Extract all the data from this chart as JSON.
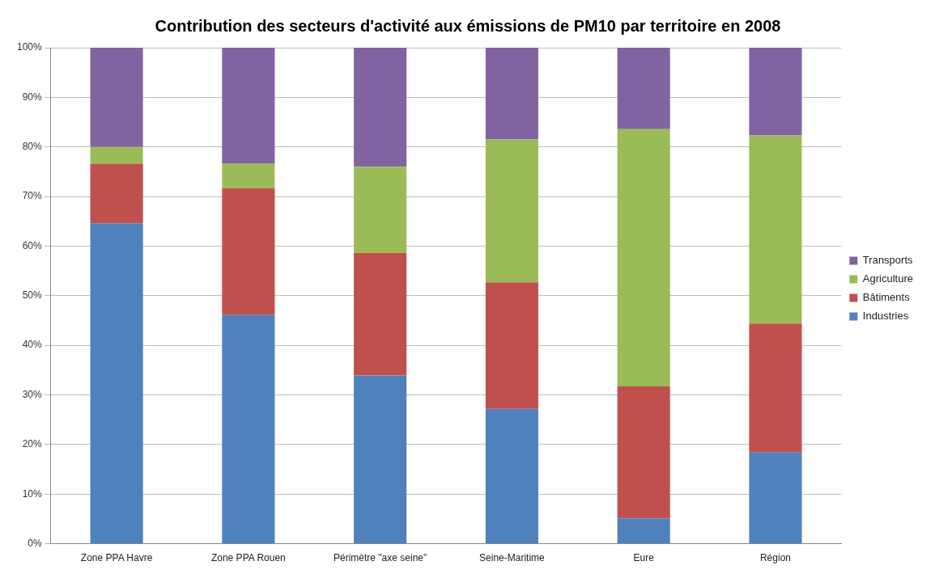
{
  "chart_data": {
    "type": "bar",
    "title": "Contribution des secteurs d'activité aux émissions de PM10 par territoire en 2008",
    "categories": [
      "Zone PPA Havre",
      "Zone PPA Rouen",
      "Périmètre \"axe seine\"",
      "Seine-Maritime",
      "Eure",
      "Région"
    ],
    "stacked": true,
    "series": [
      {
        "name": "Industries",
        "color": "#4f81bd",
        "values": [
          64.6,
          46.1,
          33.9,
          27.2,
          5.1,
          18.4
        ]
      },
      {
        "name": "Bâtiments",
        "color": "#c0504d",
        "values": [
          12.0,
          25.6,
          24.7,
          25.5,
          26.6,
          26.0
        ]
      },
      {
        "name": "Agriculture",
        "color": "#9bbb59",
        "values": [
          3.4,
          5.0,
          17.4,
          28.8,
          51.9,
          37.9
        ]
      },
      {
        "name": "Transports",
        "color": "#8064a2",
        "values": [
          20.0,
          23.3,
          24.0,
          18.5,
          16.4,
          17.7
        ]
      }
    ],
    "ylim": [
      0,
      100
    ],
    "yticks": [
      {
        "value": 0,
        "label": "0%"
      },
      {
        "value": 10,
        "label": "10%"
      },
      {
        "value": 20,
        "label": "20%"
      },
      {
        "value": 30,
        "label": "30%"
      },
      {
        "value": 40,
        "label": "40%"
      },
      {
        "value": 50,
        "label": "50%"
      },
      {
        "value": 60,
        "label": "60%"
      },
      {
        "value": 70,
        "label": "70%"
      },
      {
        "value": 80,
        "label": "80%"
      },
      {
        "value": 90,
        "label": "90%"
      },
      {
        "value": 100,
        "label": "100%"
      }
    ],
    "grid": "y",
    "legend": "right"
  }
}
